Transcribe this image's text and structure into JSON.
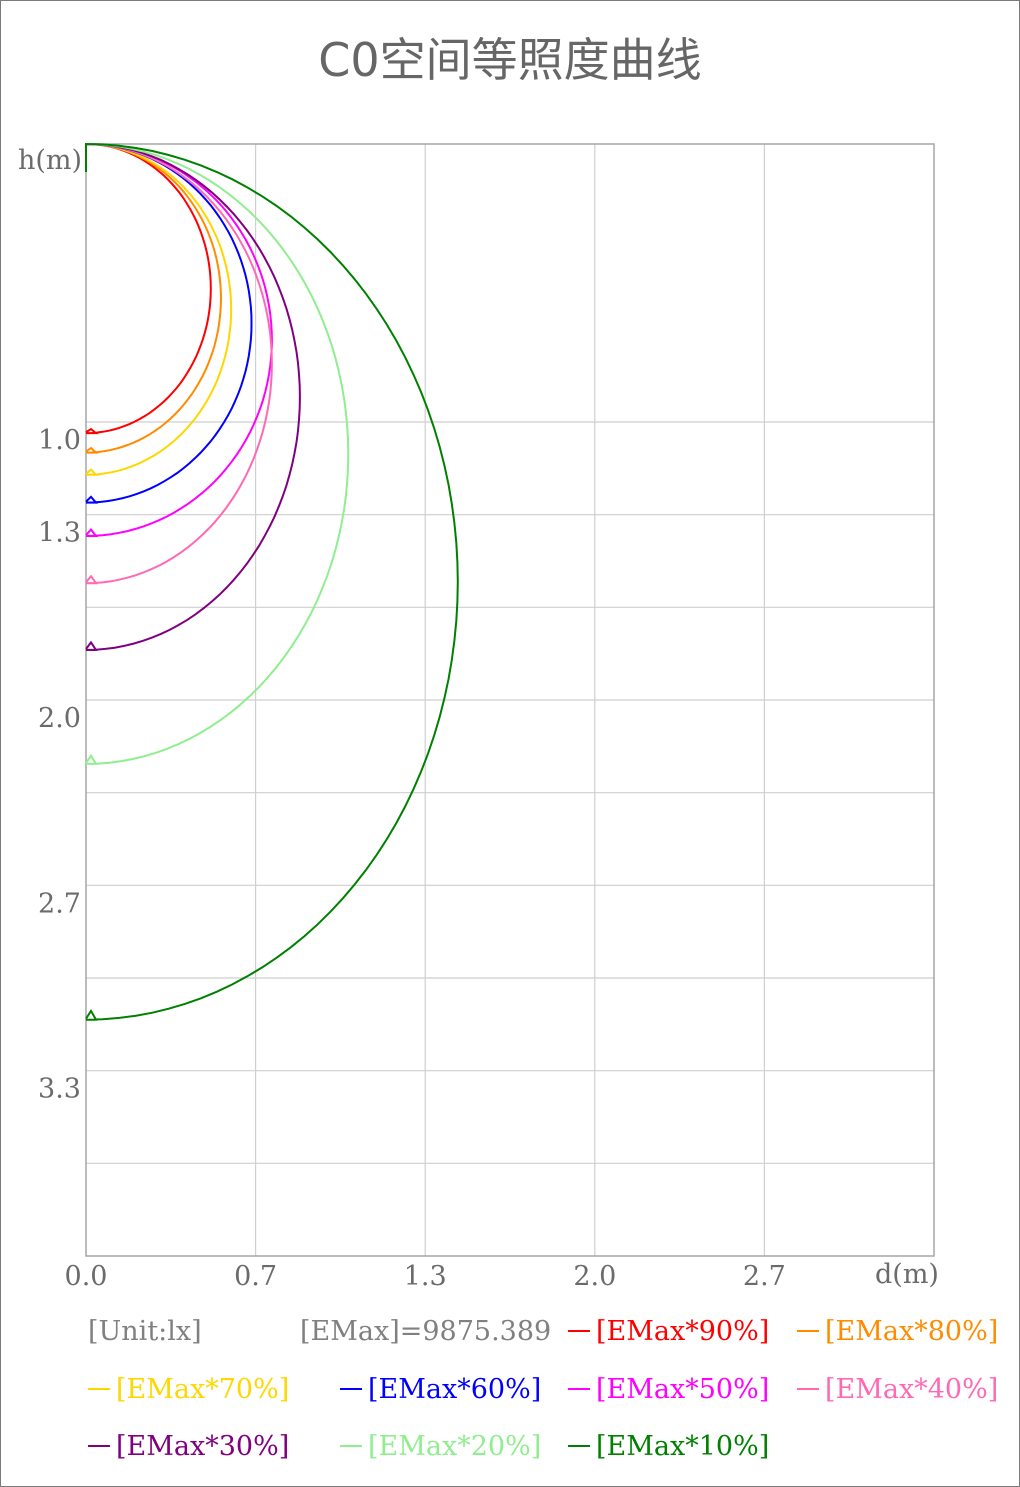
{
  "chart_data": {
    "type": "line",
    "title": "C0空间等照度曲线",
    "ylabel": "h(m)",
    "xlabel": "d(m)",
    "x_ticks": [
      "0.0",
      "0.7",
      "1.3",
      "2.0",
      "2.7"
    ],
    "y_ticks": [
      "1.0",
      "1.3",
      "2.0",
      "2.7",
      "3.3"
    ],
    "xlim": [
      0,
      3.33
    ],
    "ylim": [
      0,
      4.0
    ],
    "unit_label": "[Unit:lx]",
    "emax_label": "[EMax]=9875.389",
    "series": [
      {
        "name": "[EMax*90%]",
        "color": "#ff0000",
        "peak_d": 0.49,
        "bottom_h": 1.04
      },
      {
        "name": "[EMax*80%]",
        "color": "#ff8c00",
        "peak_d": 0.53,
        "bottom_h": 1.11
      },
      {
        "name": "[EMax*70%]",
        "color": "#ffd700",
        "peak_d": 0.57,
        "bottom_h": 1.19
      },
      {
        "name": "[EMax*60%]",
        "color": "#0000ff",
        "peak_d": 0.65,
        "bottom_h": 1.29
      },
      {
        "name": "[EMax*50%]",
        "color": "#ff00ff",
        "peak_d": 0.73,
        "bottom_h": 1.41
      },
      {
        "name": "[EMax*40%]",
        "color": "#ff69b4",
        "peak_d": 0.73,
        "bottom_h": 1.58
      },
      {
        "name": "[EMax*30%]",
        "color": "#800080",
        "peak_d": 0.84,
        "bottom_h": 1.82
      },
      {
        "name": "[EMax*20%]",
        "color": "#90ee90",
        "peak_d": 1.03,
        "bottom_h": 2.23
      },
      {
        "name": "[EMax*10%]",
        "color": "#008000",
        "peak_d": 1.46,
        "bottom_h": 3.15
      }
    ],
    "grid": true,
    "legend_position": "bottom"
  }
}
